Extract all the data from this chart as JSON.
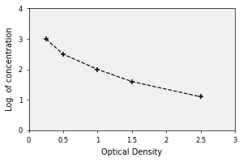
{
  "x_data": [
    0.25,
    0.5,
    1.0,
    1.5,
    2.5
  ],
  "y_data": [
    3.0,
    2.5,
    2.0,
    1.6,
    1.1
  ],
  "xlabel": "Optical Density",
  "ylabel": "Log. of concentration",
  "xlim": [
    0,
    3
  ],
  "ylim": [
    0,
    4
  ],
  "xticks": [
    0,
    0.5,
    1,
    1.5,
    2,
    2.5,
    3
  ],
  "xticklabels": [
    "0",
    "0.5",
    "1",
    "1.5",
    "2",
    "2.5",
    "3"
  ],
  "yticks": [
    0,
    1,
    2,
    3,
    4
  ],
  "line_color": "#111111",
  "line_style": "--",
  "marker": "+",
  "marker_size": 5,
  "marker_color": "#111111",
  "line_width": 0.9,
  "background_color": "#ffffff",
  "plot_bg_color": "#f0f0f0",
  "xlabel_fontsize": 7,
  "ylabel_fontsize": 7,
  "tick_fontsize": 6,
  "marker_edge_width": 1.2
}
